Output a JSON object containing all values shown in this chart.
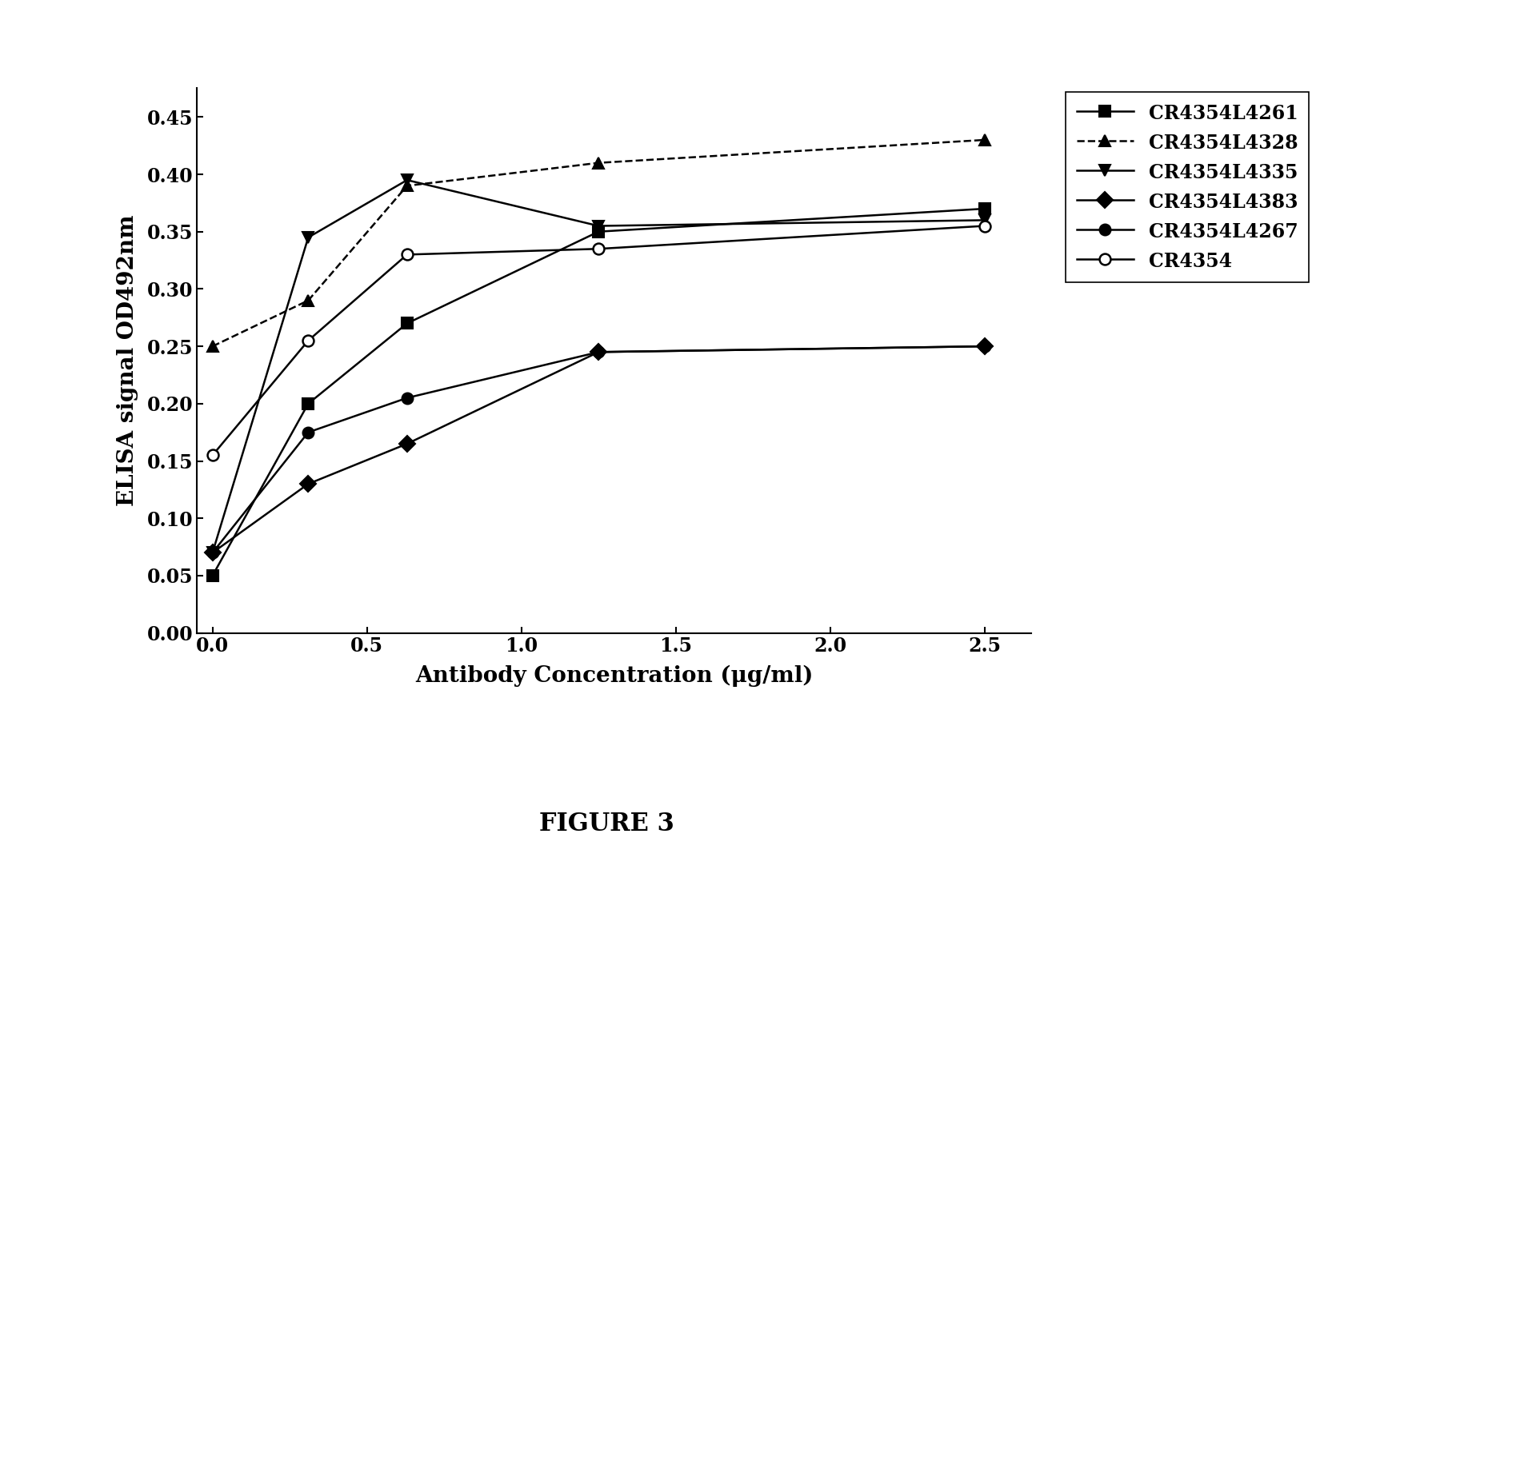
{
  "x": [
    0.0,
    0.31,
    0.63,
    1.25,
    2.5
  ],
  "series": [
    {
      "label": "CR4354L4261",
      "y": [
        0.05,
        0.2,
        0.27,
        0.35,
        0.37
      ],
      "marker": "s",
      "linestyle": "-",
      "fillstyle": "full"
    },
    {
      "label": "CR4354L4328",
      "y": [
        0.25,
        0.29,
        0.39,
        0.41,
        0.43
      ],
      "marker": "^",
      "linestyle": "--",
      "fillstyle": "full"
    },
    {
      "label": "CR4354L4335",
      "y": [
        0.07,
        0.345,
        0.395,
        0.355,
        0.36
      ],
      "marker": "v",
      "linestyle": "-",
      "fillstyle": "full"
    },
    {
      "label": "CR4354L4383",
      "y": [
        0.07,
        0.13,
        0.165,
        0.245,
        0.25
      ],
      "marker": "D",
      "linestyle": "-",
      "fillstyle": "full"
    },
    {
      "label": "CR4354L4267",
      "y": [
        0.07,
        0.175,
        0.205,
        0.245,
        0.25
      ],
      "marker": "o",
      "linestyle": "-",
      "fillstyle": "full"
    },
    {
      "label": "CR4354",
      "y": [
        0.155,
        0.255,
        0.33,
        0.335,
        0.355
      ],
      "marker": "o",
      "linestyle": "-",
      "fillstyle": "none"
    }
  ],
  "xlabel": "Antibody Concentration (μg/ml)",
  "ylabel": "ELISA signal OD492nm",
  "xlim": [
    -0.05,
    2.65
  ],
  "ylim": [
    0.0,
    0.475
  ],
  "yticks": [
    0.0,
    0.05,
    0.1,
    0.15,
    0.2,
    0.25,
    0.3,
    0.35,
    0.4,
    0.45
  ],
  "xticks": [
    0.0,
    0.5,
    1.0,
    1.5,
    2.0,
    2.5
  ],
  "xtick_labels": [
    "0.0",
    "0.5",
    "1.0",
    "1.5",
    "2.0",
    "2.5"
  ],
  "ytick_labels": [
    "0.00",
    "0.05",
    "0.10",
    "0.15",
    "0.20",
    "0.25",
    "0.30",
    "0.35",
    "0.40",
    "0.45"
  ],
  "figure_caption": "FIGURE 3",
  "background_color": "#ffffff"
}
